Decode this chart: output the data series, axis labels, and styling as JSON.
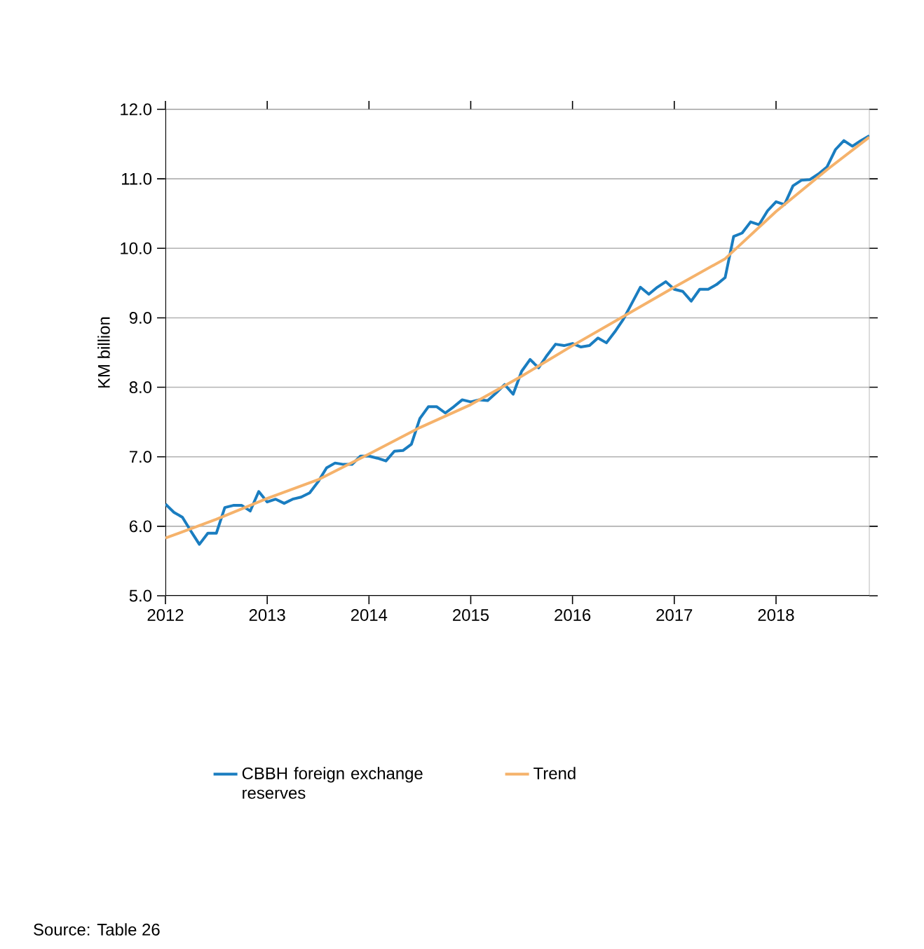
{
  "chart_data": {
    "type": "line",
    "ylabel": "KM billion",
    "x": [
      "2012-01",
      "2012-02",
      "2012-03",
      "2012-04",
      "2012-05",
      "2012-06",
      "2012-07",
      "2012-08",
      "2012-09",
      "2012-10",
      "2012-11",
      "2012-12",
      "2013-01",
      "2013-02",
      "2013-03",
      "2013-04",
      "2013-05",
      "2013-06",
      "2013-07",
      "2013-08",
      "2013-09",
      "2013-10",
      "2013-11",
      "2013-12",
      "2014-01",
      "2014-02",
      "2014-03",
      "2014-04",
      "2014-05",
      "2014-06",
      "2014-07",
      "2014-08",
      "2014-09",
      "2014-10",
      "2014-11",
      "2014-12",
      "2015-01",
      "2015-02",
      "2015-03",
      "2015-04",
      "2015-05",
      "2015-06",
      "2015-07",
      "2015-08",
      "2015-09",
      "2015-10",
      "2015-11",
      "2015-12",
      "2016-01",
      "2016-02",
      "2016-03",
      "2016-04",
      "2016-05",
      "2016-06",
      "2016-07",
      "2016-08",
      "2016-09",
      "2016-10",
      "2016-11",
      "2016-12",
      "2017-01",
      "2017-02",
      "2017-03",
      "2017-04",
      "2017-05",
      "2017-06",
      "2017-07",
      "2017-08",
      "2017-09",
      "2017-10",
      "2017-11",
      "2017-12",
      "2018-01",
      "2018-02",
      "2018-03",
      "2018-04",
      "2018-05",
      "2018-06",
      "2018-07",
      "2018-08",
      "2018-09",
      "2018-10",
      "2018-11",
      "2018-12"
    ],
    "series": [
      {
        "name": "CBBH foreign exchange reserves",
        "color": "#1a7dc0",
        "values": [
          6.32,
          6.2,
          6.13,
          5.93,
          5.74,
          5.9,
          5.9,
          6.27,
          6.3,
          6.3,
          6.22,
          6.5,
          6.35,
          6.39,
          6.33,
          6.39,
          6.42,
          6.48,
          6.64,
          6.84,
          6.91,
          6.89,
          6.89,
          7.01,
          7.01,
          6.98,
          6.94,
          7.08,
          7.09,
          7.18,
          7.55,
          7.72,
          7.72,
          7.63,
          7.72,
          7.82,
          7.79,
          7.82,
          7.81,
          7.92,
          8.04,
          7.9,
          8.23,
          8.4,
          8.28,
          8.46,
          8.62,
          8.6,
          8.63,
          8.58,
          8.6,
          8.71,
          8.64,
          8.8,
          8.98,
          9.21,
          9.44,
          9.34,
          9.44,
          9.52,
          9.41,
          9.38,
          9.24,
          9.41,
          9.41,
          9.48,
          9.58,
          10.17,
          10.22,
          10.38,
          10.34,
          10.54,
          10.67,
          10.63,
          10.9,
          10.98,
          10.99,
          11.07,
          11.17,
          11.42,
          11.55,
          11.47,
          11.55,
          11.62
        ]
      },
      {
        "name": "Trend",
        "color": "#f5b26b",
        "x": [
          "2012-01",
          "2012-07",
          "2013-01",
          "2013-07",
          "2014-01",
          "2014-07",
          "2015-01",
          "2015-07",
          "2016-01",
          "2016-07",
          "2017-01",
          "2017-07",
          "2018-01",
          "2018-07",
          "2018-12"
        ],
        "values": [
          5.83,
          6.1,
          6.4,
          6.67,
          7.04,
          7.42,
          7.75,
          8.16,
          8.6,
          9.02,
          9.44,
          9.85,
          10.53,
          11.13,
          11.6
        ]
      }
    ],
    "xlim": [
      "2012-01",
      "2018-12"
    ],
    "xticks": [
      "2012",
      "2013",
      "2014",
      "2015",
      "2016",
      "2017",
      "2018"
    ],
    "ylim": [
      5,
      12
    ],
    "yticks": [
      {
        "value": 5,
        "label": "5.0"
      },
      {
        "value": 6,
        "label": "6.0"
      },
      {
        "value": 7,
        "label": "7.0"
      },
      {
        "value": 8,
        "label": "8.0"
      },
      {
        "value": 9,
        "label": "9.0"
      },
      {
        "value": 10,
        "label": "10.0"
      },
      {
        "value": 11,
        "label": "11.0"
      },
      {
        "value": 12,
        "label": "12.0"
      }
    ],
    "grid": "y",
    "legend": "bottom",
    "annotations": [
      "Source: Table 26"
    ]
  }
}
